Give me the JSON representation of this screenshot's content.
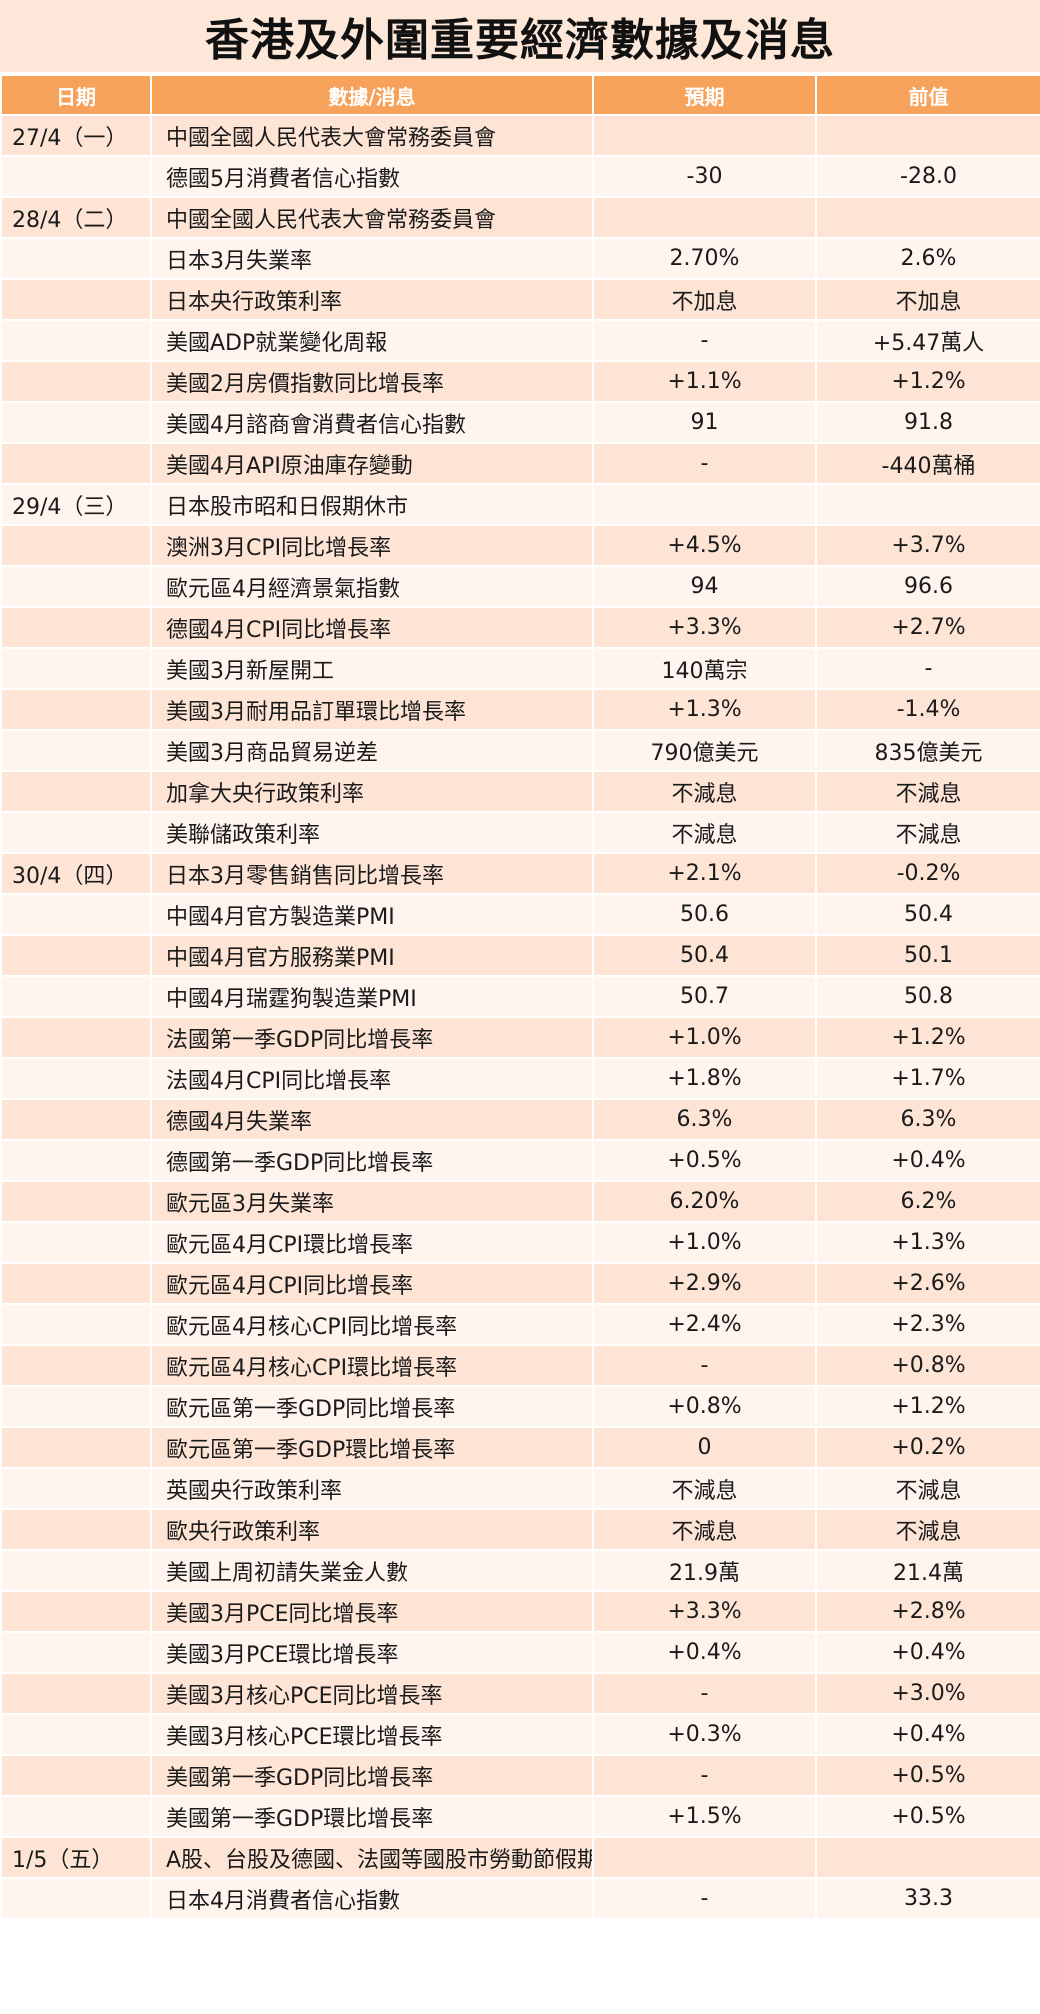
{
  "title": "香港及外圍重要經濟數據及消息",
  "headers": {
    "date": "日期",
    "item": "數據/消息",
    "forecast": "預期",
    "previous": "前值"
  },
  "rows": [
    {
      "date": "27/4（一）",
      "item": "中國全國人民代表大會常務委員會",
      "forecast": "",
      "previous": ""
    },
    {
      "date": "",
      "item": "德國5月消費者信心指數",
      "forecast": "-30",
      "previous": "-28.0"
    },
    {
      "date": "28/4（二）",
      "item": "中國全國人民代表大會常務委員會",
      "forecast": "",
      "previous": ""
    },
    {
      "date": "",
      "item": "日本3月失業率",
      "forecast": "2.70%",
      "previous": "2.6%"
    },
    {
      "date": "",
      "item": "日本央行政策利率",
      "forecast": "不加息",
      "previous": "不加息"
    },
    {
      "date": "",
      "item": "美國ADP就業變化周報",
      "forecast": "-",
      "previous": "+5.47萬人"
    },
    {
      "date": "",
      "item": "美國2月房價指數同比增長率",
      "forecast": "+1.1%",
      "previous": "+1.2%"
    },
    {
      "date": "",
      "item": "美國4月諮商會消費者信心指數",
      "forecast": "91",
      "previous": "91.8"
    },
    {
      "date": "",
      "item": "美國4月API原油庫存變動",
      "forecast": "-",
      "previous": "-440萬桶"
    },
    {
      "date": "29/4（三）",
      "item": "日本股市昭和日假期休市",
      "forecast": "",
      "previous": ""
    },
    {
      "date": "",
      "item": "澳洲3月CPI同比增長率",
      "forecast": "+4.5%",
      "previous": "+3.7%"
    },
    {
      "date": "",
      "item": "歐元區4月經濟景氣指數",
      "forecast": "94",
      "previous": "96.6"
    },
    {
      "date": "",
      "item": "德國4月CPI同比增長率",
      "forecast": "+3.3%",
      "previous": "+2.7%"
    },
    {
      "date": "",
      "item": "美國3月新屋開工",
      "forecast": "140萬宗",
      "previous": "-"
    },
    {
      "date": "",
      "item": "美國3月耐用品訂單環比增長率",
      "forecast": "+1.3%",
      "previous": "-1.4%"
    },
    {
      "date": "",
      "item": "美國3月商品貿易逆差",
      "forecast": "790億美元",
      "previous": "835億美元"
    },
    {
      "date": "",
      "item": "加拿大央行政策利率",
      "forecast": "不減息",
      "previous": "不減息"
    },
    {
      "date": "",
      "item": "美聯儲政策利率",
      "forecast": "不減息",
      "previous": "不減息"
    },
    {
      "date": "30/4（四）",
      "item": "日本3月零售銷售同比增長率",
      "forecast": "+2.1%",
      "previous": "-0.2%"
    },
    {
      "date": "",
      "item": "中國4月官方製造業PMI",
      "forecast": "50.6",
      "previous": "50.4"
    },
    {
      "date": "",
      "item": "中國4月官方服務業PMI",
      "forecast": "50.4",
      "previous": "50.1"
    },
    {
      "date": "",
      "item": "中國4月瑞霆狗製造業PMI",
      "forecast": "50.7",
      "previous": "50.8"
    },
    {
      "date": "",
      "item": "法國第一季GDP同比增長率",
      "forecast": "+1.0%",
      "previous": "+1.2%"
    },
    {
      "date": "",
      "item": "法國4月CPI同比增長率",
      "forecast": "+1.8%",
      "previous": "+1.7%"
    },
    {
      "date": "",
      "item": "德國4月失業率",
      "forecast": "6.3%",
      "previous": "6.3%"
    },
    {
      "date": "",
      "item": "德國第一季GDP同比增長率",
      "forecast": "+0.5%",
      "previous": "+0.4%"
    },
    {
      "date": "",
      "item": "歐元區3月失業率",
      "forecast": "6.20%",
      "previous": "6.2%"
    },
    {
      "date": "",
      "item": "歐元區4月CPI環比增長率",
      "forecast": "+1.0%",
      "previous": "+1.3%"
    },
    {
      "date": "",
      "item": "歐元區4月CPI同比增長率",
      "forecast": "+2.9%",
      "previous": "+2.6%"
    },
    {
      "date": "",
      "item": "歐元區4月核心CPI同比增長率",
      "forecast": "+2.4%",
      "previous": "+2.3%"
    },
    {
      "date": "",
      "item": "歐元區4月核心CPI環比增長率",
      "forecast": "-",
      "previous": "+0.8%"
    },
    {
      "date": "",
      "item": "歐元區第一季GDP同比增長率",
      "forecast": "+0.8%",
      "previous": "+1.2%"
    },
    {
      "date": "",
      "item": "歐元區第一季GDP環比增長率",
      "forecast": "0",
      "previous": "+0.2%"
    },
    {
      "date": "",
      "item": "英國央行政策利率",
      "forecast": "不減息",
      "previous": "不減息"
    },
    {
      "date": "",
      "item": "歐央行政策利率",
      "forecast": "不減息",
      "previous": "不減息"
    },
    {
      "date": "",
      "item": "美國上周初請失業金人數",
      "forecast": "21.9萬",
      "previous": "21.4萬"
    },
    {
      "date": "",
      "item": "美國3月PCE同比增長率",
      "forecast": "+3.3%",
      "previous": "+2.8%"
    },
    {
      "date": "",
      "item": "美國3月PCE環比增長率",
      "forecast": "+0.4%",
      "previous": "+0.4%"
    },
    {
      "date": "",
      "item": "美國3月核心PCE同比增長率",
      "forecast": "-",
      "previous": "+3.0%"
    },
    {
      "date": "",
      "item": "美國3月核心PCE環比增長率",
      "forecast": "+0.3%",
      "previous": "+0.4%"
    },
    {
      "date": "",
      "item": "美國第一季GDP同比增長率",
      "forecast": "-",
      "previous": "+0.5%"
    },
    {
      "date": "",
      "item": "美國第一季GDP環比增長率",
      "forecast": "+1.5%",
      "previous": "+0.5%"
    },
    {
      "date": "1/5（五）",
      "item": "A股、台股及德國、法國等國股市勞動節假期休市",
      "forecast": "",
      "previous": ""
    },
    {
      "date": "",
      "item": "日本4月消費者信心指數",
      "forecast": "-",
      "previous": "33.3"
    }
  ]
}
